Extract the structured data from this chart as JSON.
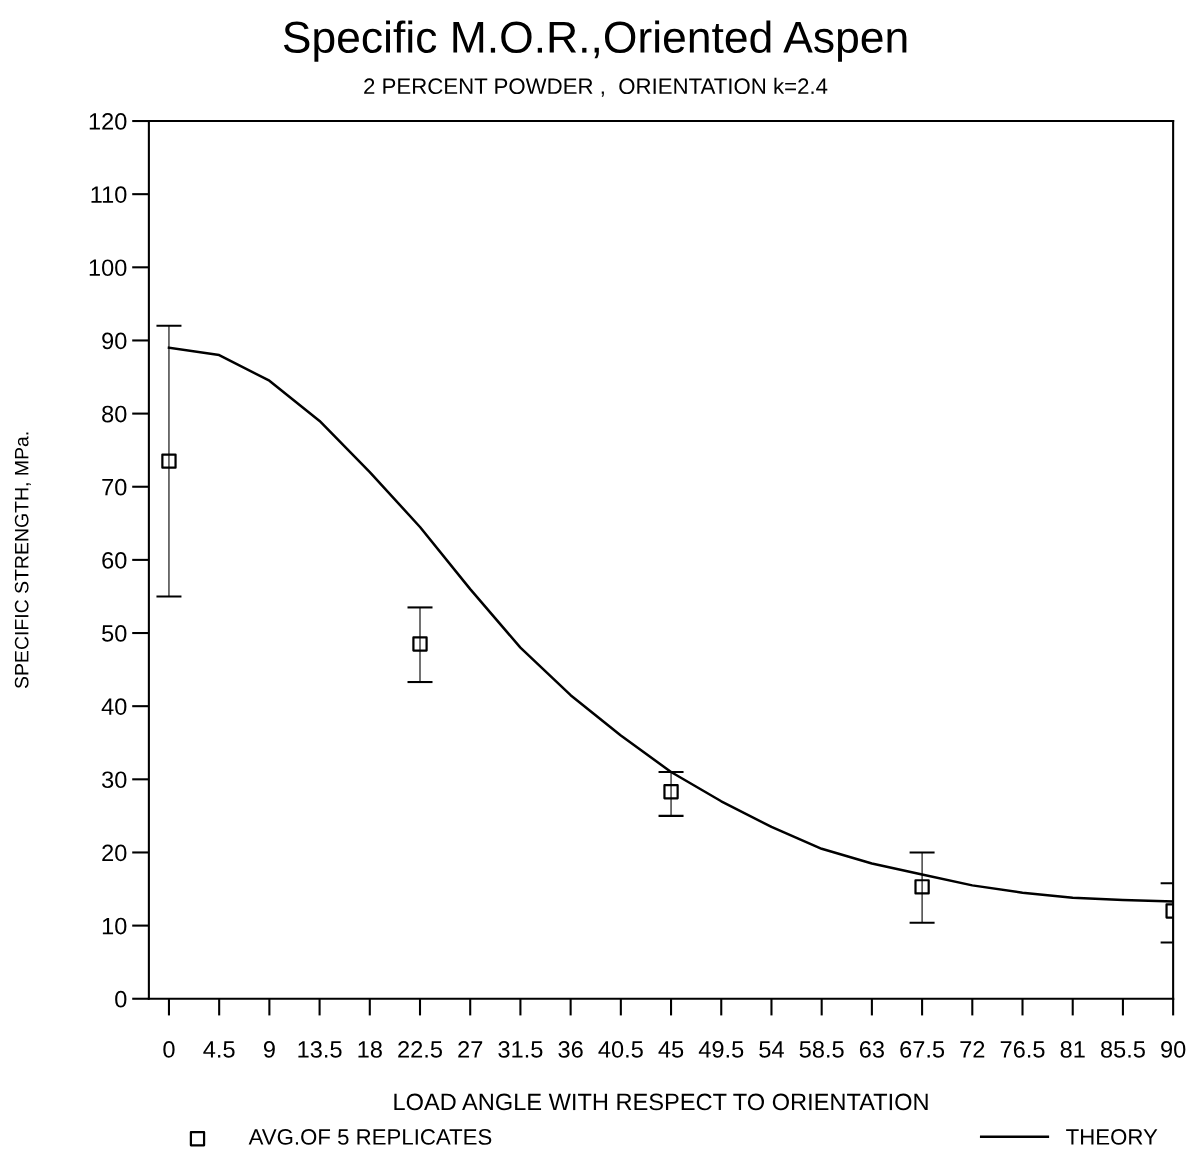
{
  "chart_data": {
    "type": "scatter",
    "title": "Specific M.O.R.,Oriented Aspen",
    "subtitle": "2 PERCENT POWDER ,  ORIENTATION k=2.4",
    "xlabel": "LOAD ANGLE WITH RESPECT TO ORIENTATION",
    "ylabel": "SPECIFIC STRENGTH, MPa.",
    "series": [
      {
        "name": "AVG.OF 5 REPLICATES",
        "color": "#000000",
        "marker": "square",
        "x": [
          0,
          22.5,
          45,
          67.5,
          90
        ],
        "values": [
          73.5,
          48.5,
          28.3,
          15.3,
          12
        ],
        "errors": [
          [
            55,
            92
          ],
          [
            43.3,
            53.5
          ],
          [
            25,
            31
          ],
          [
            10.4,
            20
          ],
          [
            7.7,
            15.8
          ]
        ]
      },
      {
        "name": "THEORY",
        "type": "line",
        "color": "#000000",
        "marker": "none",
        "line_style": "solid",
        "x": [
          0,
          4.5,
          9,
          13.5,
          18,
          22.5,
          27,
          31.5,
          36,
          40.5,
          45,
          49.5,
          54,
          58.5,
          63,
          67.5,
          72,
          76.5,
          81,
          85.5,
          90
        ],
        "values": [
          89,
          88,
          84.5,
          79,
          72,
          64.5,
          56,
          48,
          41.5,
          36,
          31,
          27,
          23.5,
          20.5,
          18.5,
          17,
          15.5,
          14.5,
          13.8,
          13.5,
          13.3
        ]
      }
    ],
    "xlim": [
      -1.8,
      90
    ],
    "ylim": [
      0,
      120
    ],
    "xticks": [
      0,
      4.5,
      9,
      13.5,
      18,
      22.5,
      27,
      31.5,
      36,
      40.5,
      45,
      49.5,
      54,
      58.5,
      63,
      67.5,
      72,
      76.5,
      81,
      85.5,
      90
    ],
    "yticks": [
      0,
      10,
      20,
      30,
      40,
      50,
      60,
      70,
      80,
      90,
      100,
      110,
      120
    ],
    "grid": false,
    "legend": "bottom"
  }
}
